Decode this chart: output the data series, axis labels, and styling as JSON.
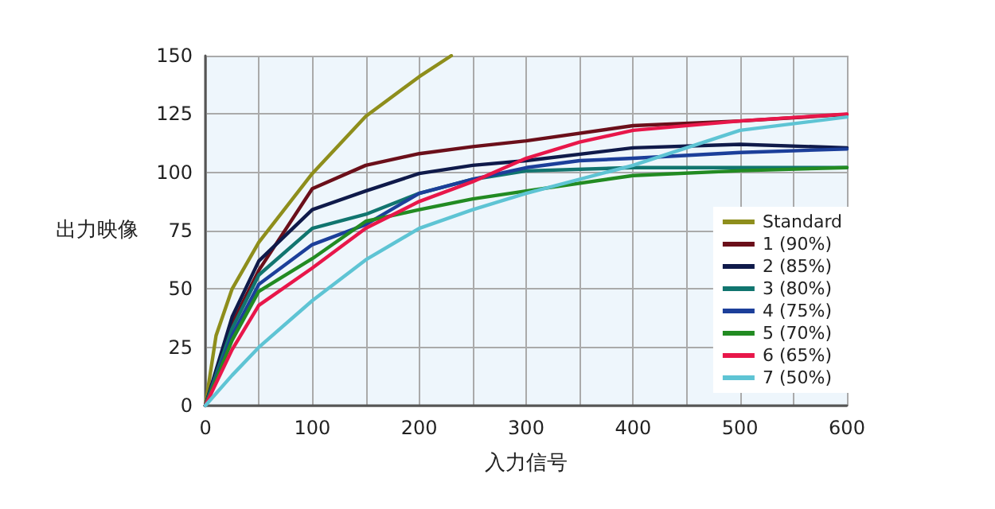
{
  "chart_data": {
    "type": "line",
    "xlabel": "入力信号",
    "ylabel": "出力映像",
    "xlim": [
      0,
      600
    ],
    "ylim": [
      0,
      150
    ],
    "xticks": [
      0,
      {
        "value": 50,
        "label": null
      },
      100,
      {
        "value": 150,
        "label": null
      },
      200,
      {
        "value": 250,
        "label": null
      },
      300,
      {
        "value": 350,
        "label": null
      },
      400,
      {
        "value": 450,
        "label": null
      },
      500,
      {
        "value": 550,
        "label": null
      },
      600
    ],
    "yticks": [
      0,
      25,
      50,
      75,
      100,
      125,
      150
    ],
    "grid": true,
    "legend": "bottom right",
    "marker": "none",
    "line_style": "solid",
    "series": [
      {
        "name": "Standard",
        "color": "#8e8e1c",
        "x": [
          0,
          10,
          25,
          50,
          100,
          150,
          200,
          230
        ],
        "values": [
          0,
          30,
          50,
          70,
          99.5,
          124,
          141,
          150
        ]
      },
      {
        "name": "1 (90%)",
        "color": "#6b0f1a",
        "x": [
          0,
          25,
          50,
          100,
          150,
          200,
          250,
          300,
          400,
          500,
          600
        ],
        "values": [
          0,
          35,
          58,
          93,
          103,
          108,
          111,
          113.5,
          120,
          122,
          124.8
        ]
      },
      {
        "name": "2 (85%)",
        "color": "#0f1a4a",
        "x": [
          0,
          25,
          50,
          100,
          150,
          200,
          250,
          300,
          400,
          500,
          600
        ],
        "values": [
          0,
          38,
          62,
          84,
          92,
          99.5,
          103,
          105,
          110.5,
          112,
          110.5
        ]
      },
      {
        "name": "3 (80%)",
        "color": "#11756f",
        "x": [
          0,
          25,
          50,
          100,
          150,
          200,
          250,
          300,
          400,
          500,
          600
        ],
        "values": [
          0,
          33,
          56,
          76,
          82,
          91,
          97,
          100.6,
          102,
          102,
          102
        ]
      },
      {
        "name": "4 (75%)",
        "color": "#1c3f9a",
        "x": [
          0,
          25,
          50,
          100,
          150,
          200,
          250,
          300,
          350,
          400,
          500,
          600
        ],
        "values": [
          0,
          30,
          52,
          69,
          77.6,
          91,
          97,
          102,
          105,
          106,
          108.5,
          110
        ]
      },
      {
        "name": "5 (70%)",
        "color": "#228b22",
        "x": [
          0,
          25,
          50,
          100,
          150,
          200,
          250,
          300,
          400,
          500,
          600
        ],
        "values": [
          0,
          28,
          49,
          63,
          79,
          84,
          88.6,
          92,
          98.6,
          100.7,
          102
        ]
      },
      {
        "name": "6 (65%)",
        "color": "#e8174a",
        "x": [
          0,
          25,
          50,
          100,
          150,
          200,
          250,
          300,
          350,
          400,
          500,
          600
        ],
        "values": [
          0,
          24,
          43,
          59,
          76,
          87.5,
          96,
          106,
          113,
          118,
          122,
          125
        ]
      },
      {
        "name": "7 (50%)",
        "color": "#5ec4d4",
        "x": [
          0,
          25,
          50,
          100,
          150,
          200,
          250,
          300,
          400,
          450,
          500,
          600
        ],
        "values": [
          0,
          13,
          25,
          45,
          62.5,
          76,
          84,
          91,
          103,
          110.5,
          118,
          123.7
        ]
      }
    ]
  }
}
